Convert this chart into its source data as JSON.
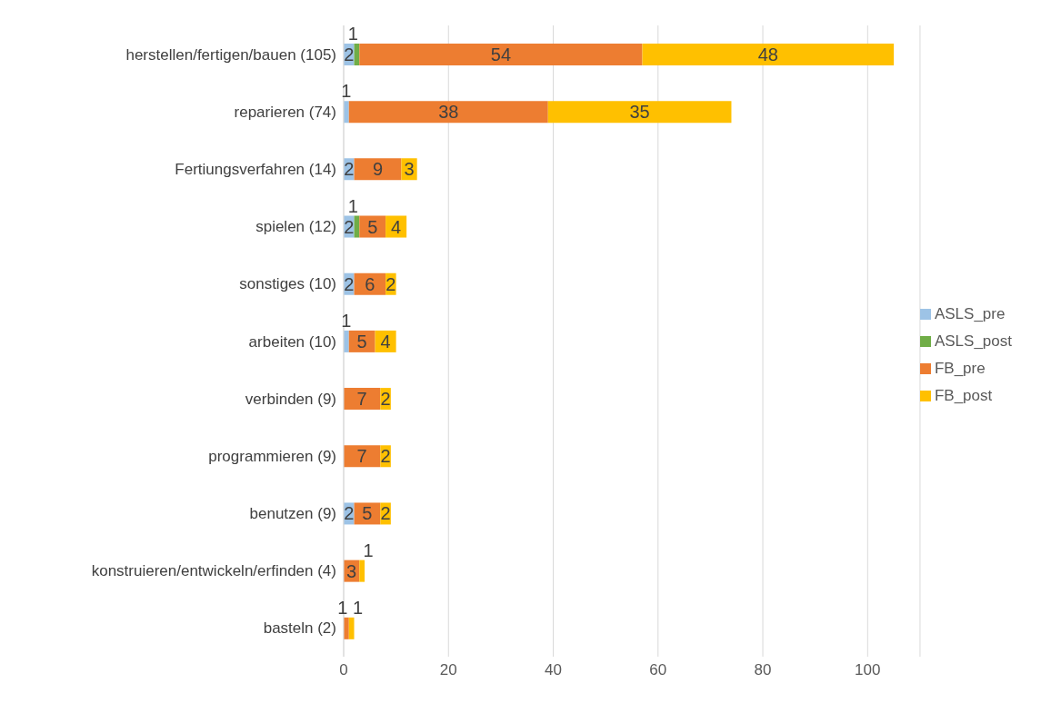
{
  "chart_data": {
    "type": "bar",
    "orientation": "horizontal",
    "stacked": true,
    "categories": [
      "herstellen/fertigen/bauen (105)",
      "reparieren (74)",
      "Fertiungsverfahren (14)",
      "spielen (12)",
      "sonstiges (10)",
      "arbeiten (10)",
      "verbinden (9)",
      "programmieren (9)",
      "benutzen (9)",
      "konstruieren/entwickeln/erfinden (4)",
      "basteln (2)"
    ],
    "series": [
      {
        "name": "ASLS_pre",
        "color": "#9dc3e6",
        "values": [
          2,
          1,
          2,
          2,
          2,
          1,
          0,
          0,
          2,
          0,
          0
        ],
        "value_labels": [
          "2",
          "1",
          "2",
          "2",
          "2",
          "1",
          null,
          null,
          "2",
          null,
          null
        ]
      },
      {
        "name": "ASLS_post",
        "color": "#70ad47",
        "values": [
          1,
          0,
          0,
          1,
          0,
          0,
          0,
          0,
          0,
          0,
          0
        ],
        "value_labels": [
          "1",
          null,
          null,
          "1",
          null,
          null,
          null,
          null,
          null,
          null,
          null
        ]
      },
      {
        "name": "FB_pre",
        "color": "#ed7d31",
        "values": [
          54,
          38,
          9,
          5,
          6,
          5,
          7,
          7,
          5,
          3,
          1
        ],
        "value_labels": [
          "54",
          "38",
          "9",
          "5",
          "6",
          "5",
          "7",
          "7",
          "5",
          "3",
          "1"
        ]
      },
      {
        "name": "FB_post",
        "color": "#ffc000",
        "values": [
          48,
          35,
          3,
          4,
          2,
          4,
          2,
          2,
          2,
          1,
          1
        ],
        "value_labels": [
          "48",
          "35",
          "3",
          "4",
          "2",
          "4",
          "2",
          "2",
          "2",
          "1",
          "1"
        ]
      }
    ],
    "xlim": [
      0,
      110
    ],
    "xticks": [
      0,
      20,
      40,
      60,
      80,
      100
    ],
    "grid": "x",
    "legend": "right"
  }
}
